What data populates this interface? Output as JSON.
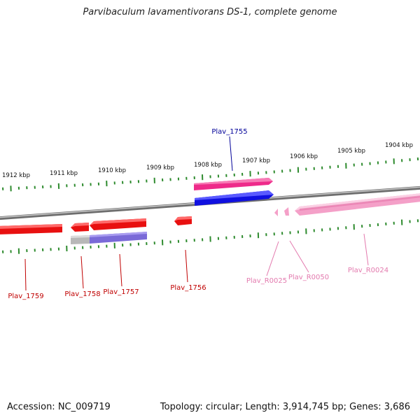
{
  "title": "Parvibaculum lavamentivorans DS-1, complete genome",
  "footer": {
    "accession": "Accession: NC_009719",
    "summary": "Topology: circular; Length: 3,914,745 bp; Genes: 3,686"
  },
  "colors": {
    "tick": "#2e8b2e",
    "backbone": "#8a8a8a",
    "gene_red": "#e81010",
    "gene_red_label": "#c00000",
    "gene_pink": "#ee2a8a",
    "gene_blue": "#1010e0",
    "gene_blue_label": "#000099",
    "rna_pink": "#f4a0c8",
    "rna_label": "#e37aae",
    "gray": "#b8b8b8",
    "purple": "#7a6ad8"
  },
  "ruler_labels": [
    {
      "text": "1912 kbp",
      "kbp": 1912
    },
    {
      "text": "1911 kbp",
      "kbp": 1911
    },
    {
      "text": "1910 kbp",
      "kbp": 1910
    },
    {
      "text": "1909 kbp",
      "kbp": 1909
    },
    {
      "text": "1908 kbp",
      "kbp": 1908
    },
    {
      "text": "1907 kbp",
      "kbp": 1907
    },
    {
      "text": "1906 kbp",
      "kbp": 1906
    },
    {
      "text": "1905 kbp",
      "kbp": 1905
    },
    {
      "text": "1904 kbp",
      "kbp": 1904
    }
  ],
  "genes": [
    {
      "label": "Plav_1755",
      "kind": "blue"
    },
    {
      "label": "Plav_1756",
      "kind": "red"
    },
    {
      "label": "Plav_1757",
      "kind": "red"
    },
    {
      "label": "Plav_1758",
      "kind": "red"
    },
    {
      "label": "Plav_1759",
      "kind": "red"
    },
    {
      "label": "Plav_R0025",
      "kind": "rna"
    },
    {
      "label": "Plav_R0050",
      "kind": "rna"
    },
    {
      "label": "Plav_R0024",
      "kind": "rna"
    }
  ]
}
